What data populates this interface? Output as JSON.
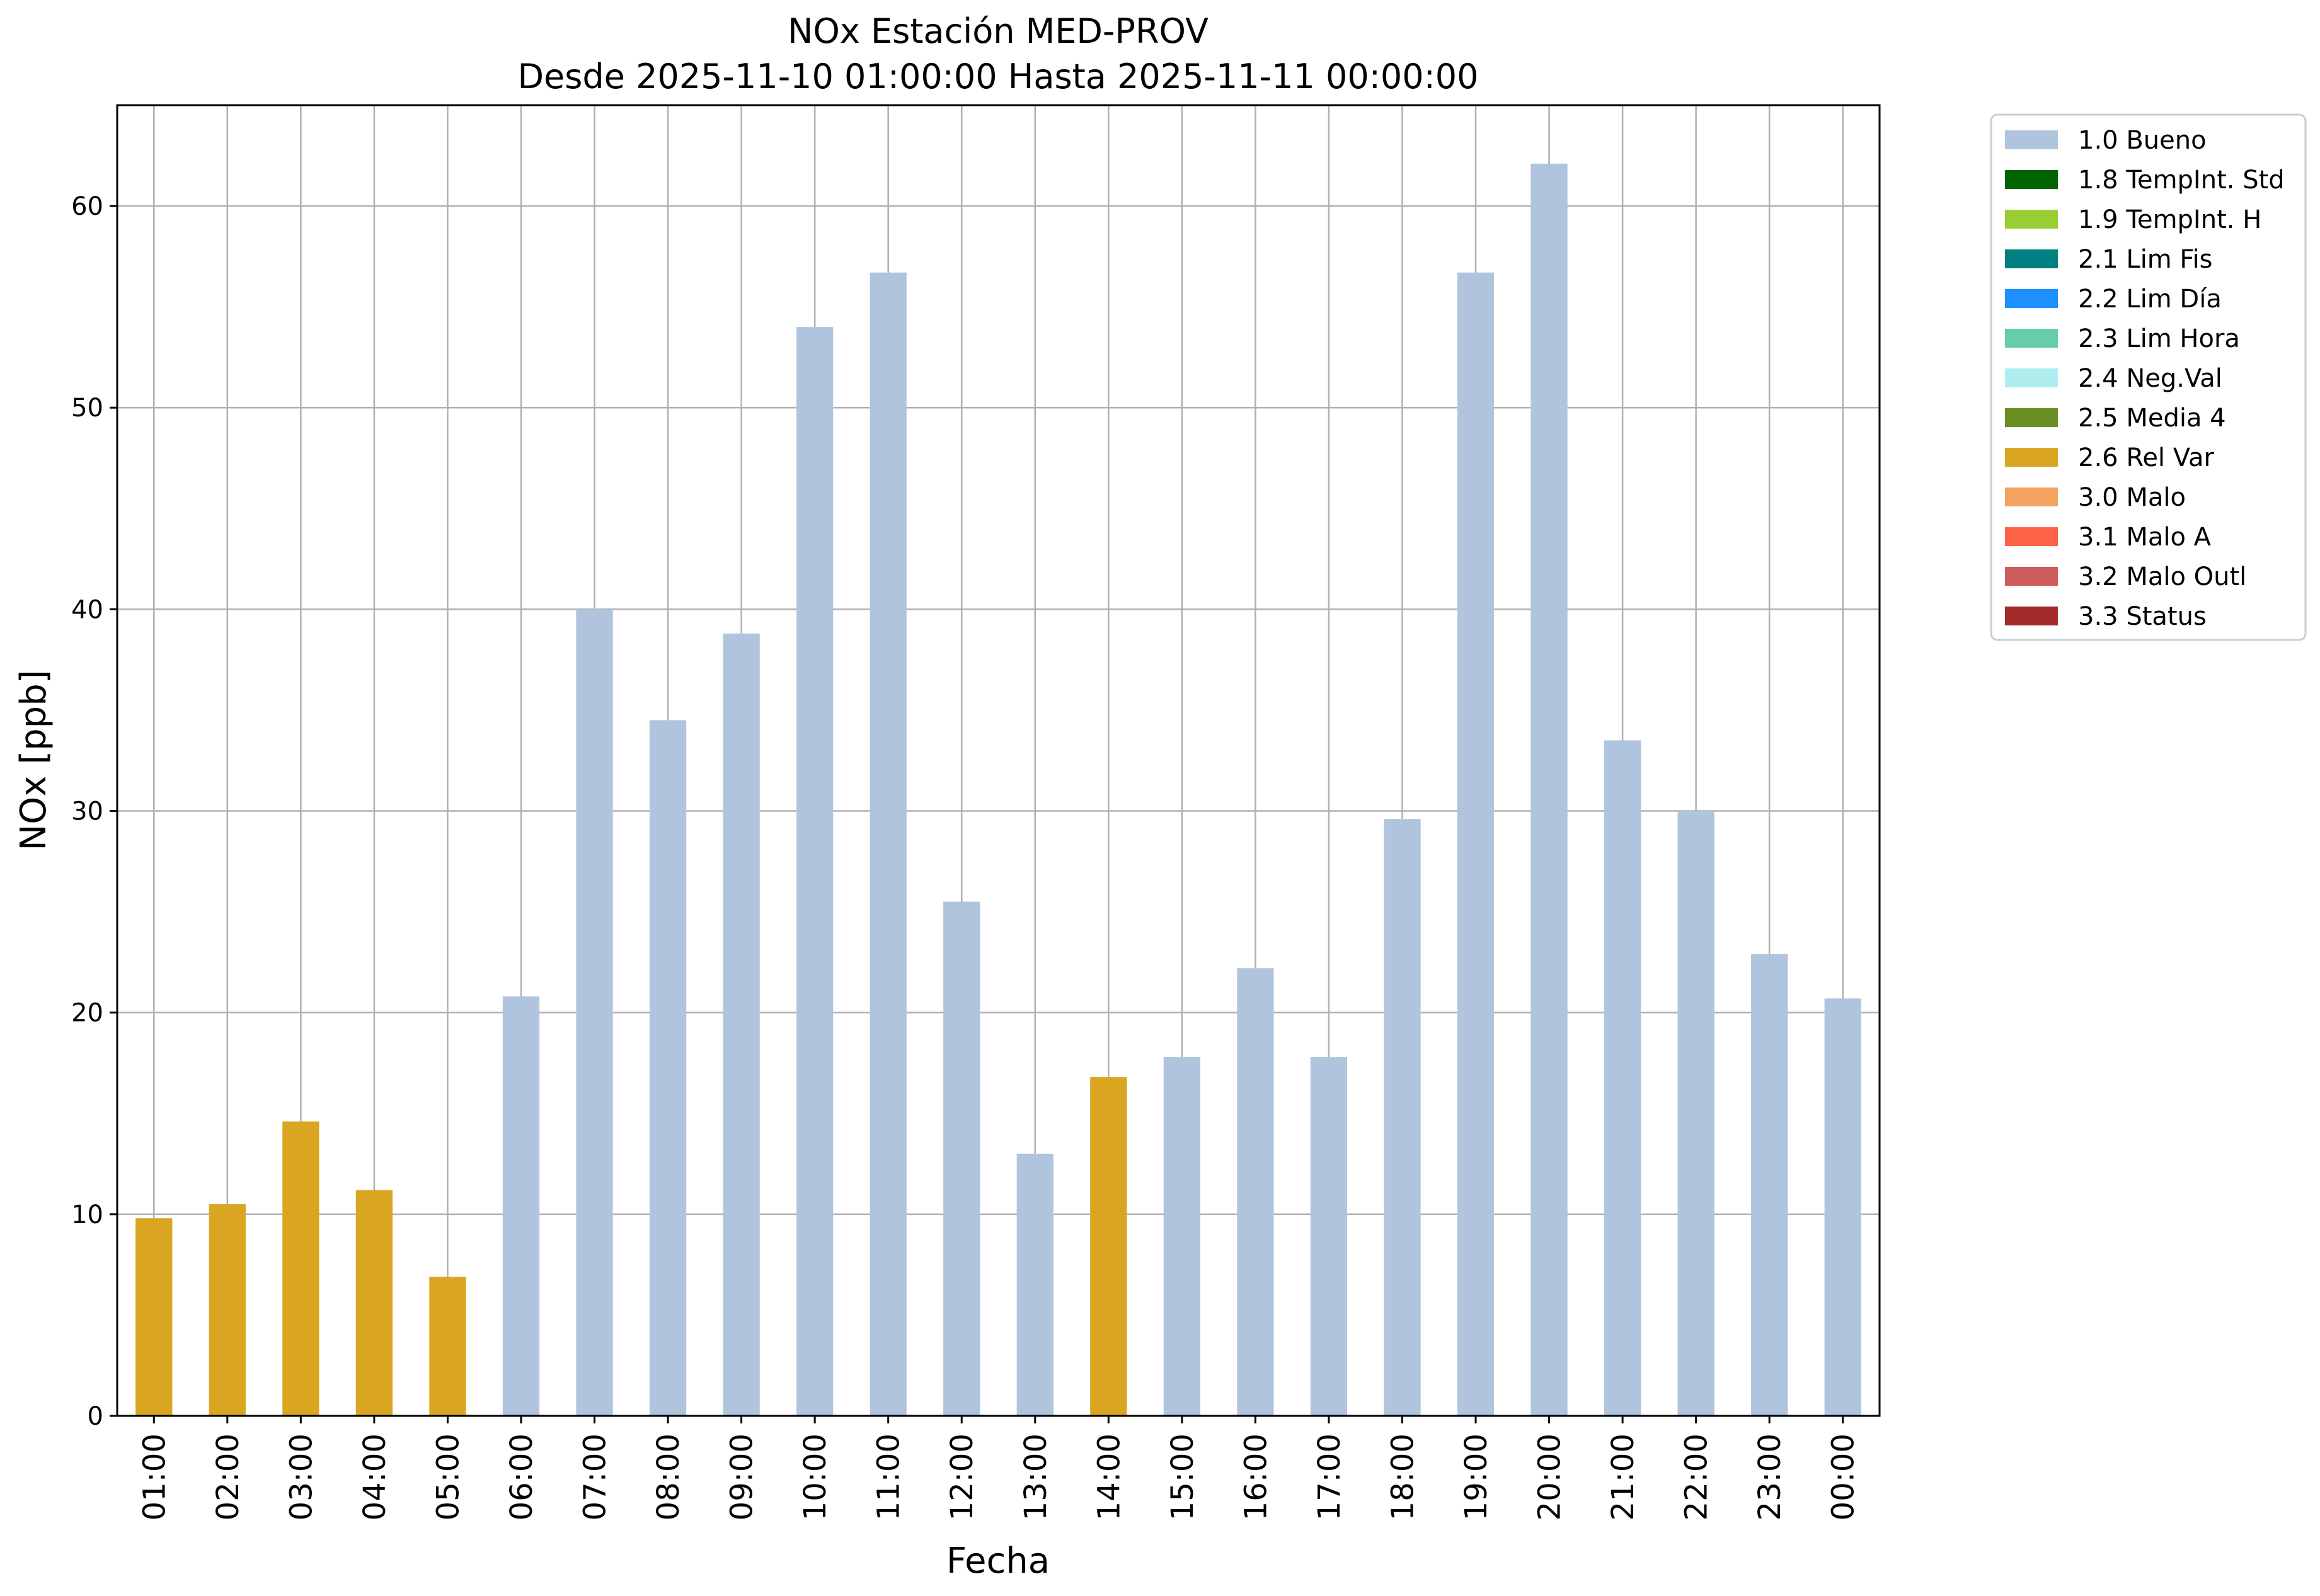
{
  "chart_data": {
    "type": "bar",
    "title": "NOx Estación MED-PROV",
    "subtitle": "Desde 2025-11-10 01:00:00 Hasta 2025-11-11 00:00:00",
    "xlabel": "Fecha",
    "ylabel": "NOx [ppb]",
    "ylim": [
      0,
      65
    ],
    "yticks": [
      0,
      10,
      20,
      30,
      40,
      50,
      60
    ],
    "grid": true,
    "legend_position": "outside-top-right",
    "categories": [
      "01:00",
      "02:00",
      "03:00",
      "04:00",
      "05:00",
      "06:00",
      "07:00",
      "08:00",
      "09:00",
      "10:00",
      "11:00",
      "12:00",
      "13:00",
      "14:00",
      "15:00",
      "16:00",
      "17:00",
      "18:00",
      "19:00",
      "20:00",
      "21:00",
      "22:00",
      "23:00",
      "00:00"
    ],
    "values": [
      9.8,
      10.5,
      14.6,
      11.2,
      6.9,
      20.8,
      40.0,
      34.5,
      38.8,
      54.0,
      56.7,
      25.5,
      13.0,
      16.8,
      17.8,
      22.2,
      17.8,
      29.6,
      56.7,
      62.1,
      33.5,
      30.0,
      22.9,
      20.7
    ],
    "flags": [
      "2.6 Rel Var",
      "2.6 Rel Var",
      "2.6 Rel Var",
      "2.6 Rel Var",
      "2.6 Rel Var",
      "1.0 Bueno",
      "1.0 Bueno",
      "1.0 Bueno",
      "1.0 Bueno",
      "1.0 Bueno",
      "1.0 Bueno",
      "1.0 Bueno",
      "1.0 Bueno",
      "2.6 Rel Var",
      "1.0 Bueno",
      "1.0 Bueno",
      "1.0 Bueno",
      "1.0 Bueno",
      "1.0 Bueno",
      "1.0 Bueno",
      "1.0 Bueno",
      "1.0 Bueno",
      "1.0 Bueno",
      "1.0 Bueno"
    ],
    "legend": [
      {
        "label": "1.0 Bueno",
        "color": "#b0c4de"
      },
      {
        "label": "1.8 TempInt. Std",
        "color": "#006400"
      },
      {
        "label": "1.9 TempInt. H",
        "color": "#9acd32"
      },
      {
        "label": "2.1 Lim Fis",
        "color": "#008080"
      },
      {
        "label": "2.2 Lim Día",
        "color": "#1e90ff"
      },
      {
        "label": "2.3 Lim Hora",
        "color": "#66cdaa"
      },
      {
        "label": "2.4 Neg.Val",
        "color": "#afeeee"
      },
      {
        "label": "2.5 Media 4",
        "color": "#6b8e23"
      },
      {
        "label": "2.6 Rel Var",
        "color": "#daa520"
      },
      {
        "label": "3.0 Malo",
        "color": "#f4a460"
      },
      {
        "label": "3.1 Malo A",
        "color": "#ff6347"
      },
      {
        "label": "3.2 Malo Outl",
        "color": "#cd5c5c"
      },
      {
        "label": "3.3 Status",
        "color": "#a52a2a"
      }
    ]
  }
}
